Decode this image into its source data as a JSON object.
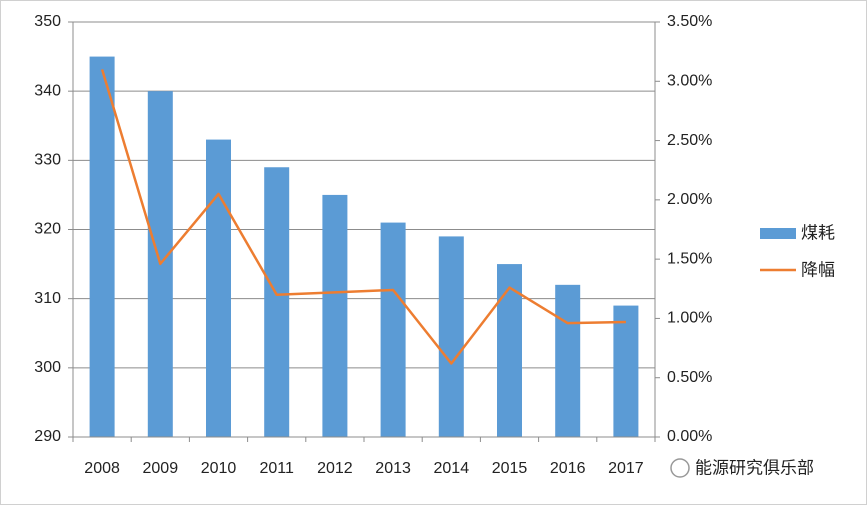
{
  "chart_data": {
    "type": "bar",
    "categories": [
      "2008",
      "2009",
      "2010",
      "2011",
      "2012",
      "2013",
      "2014",
      "2015",
      "2016",
      "2017"
    ],
    "series": [
      {
        "name": "煤耗",
        "type": "bar",
        "color": "#5b9bd5",
        "values": [
          345,
          340,
          333,
          329,
          325,
          321,
          319,
          315,
          312,
          309
        ]
      },
      {
        "name": "降幅",
        "type": "line",
        "axis": "y2",
        "color": "#ed7d31",
        "values": [
          3.1,
          1.46,
          2.05,
          1.2,
          1.22,
          1.24,
          0.62,
          1.26,
          0.96,
          0.97
        ]
      }
    ],
    "ylim": [
      290,
      350
    ],
    "yticks": [
      290,
      300,
      310,
      320,
      330,
      340,
      350
    ],
    "y2lim": [
      0,
      3.5
    ],
    "y2ticks": [
      {
        "value": 0,
        "label": "0.00%"
      },
      {
        "value": 0.5,
        "label": "0.50%"
      },
      {
        "value": 1,
        "label": "1.00%"
      },
      {
        "value": 1.5,
        "label": "1.50%"
      },
      {
        "value": 2,
        "label": "2.00%"
      },
      {
        "value": 2.5,
        "label": "2.50%"
      },
      {
        "value": 3,
        "label": "3.00%"
      },
      {
        "value": 3.5,
        "label": "3.50%"
      }
    ],
    "grid": true,
    "legend": "right",
    "watermark": "能源研究俱乐部"
  }
}
